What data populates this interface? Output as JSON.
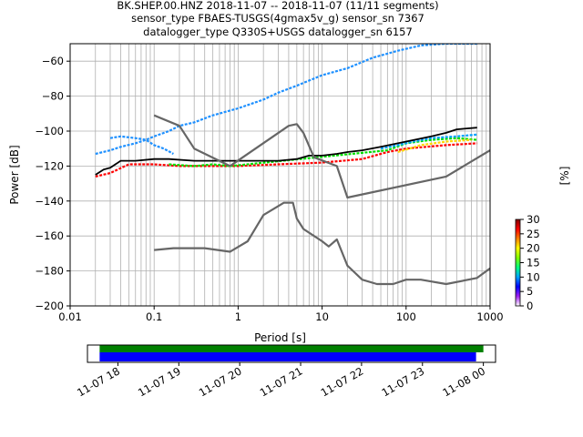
{
  "title_lines": [
    "BK.SHEP.00.HNZ   2018-11-07 -- 2018-11-07  (11/11 segments)",
    "sensor_type FBAES-TUSGS(4gmax5v_g) sensor_sn 7367",
    "datalogger_type Q330S+USGS datalogger_sn 6157"
  ],
  "chart_data": [
    {
      "type": "heatmap",
      "name": "ppsd",
      "xlabel": "Period [s]",
      "ylabel": "Power [dB]",
      "xscale": "log",
      "xlim": [
        0.01,
        1000
      ],
      "ylim": [
        -200,
        -50
      ],
      "xticks": [
        0.01,
        0.1,
        1,
        10,
        100,
        1000
      ],
      "xtick_labels": [
        "0.01",
        "0.1",
        "1",
        "10",
        "100",
        "1000"
      ],
      "yticks": [
        -200,
        -180,
        -160,
        -140,
        -120,
        -100,
        -80,
        -60
      ],
      "ytick_labels": [
        "−200",
        "−180",
        "−160",
        "−140",
        "−120",
        "−100",
        "−80",
        "−60"
      ],
      "grid": true,
      "colorbar": {
        "label": "[%]",
        "range": [
          0,
          30
        ],
        "ticks": [
          0,
          5,
          10,
          15,
          20,
          25,
          30
        ],
        "tick_labels": [
          "0",
          "5",
          "10",
          "15",
          "20",
          "25",
          "30"
        ],
        "colormap": [
          "#ffffff",
          "#a020f0",
          "#0000ff",
          "#00a0ff",
          "#00ff80",
          "#80ff00",
          "#ffff00",
          "#ff8000",
          "#ff0000",
          "#800000"
        ]
      },
      "series": [
        {
          "role": "mean",
          "color": "#000000",
          "x": [
            0.02,
            0.025,
            0.03,
            0.04,
            0.06,
            0.1,
            0.15,
            0.3,
            0.6,
            1,
            2,
            3,
            5,
            7,
            10,
            15,
            20,
            30,
            50,
            100,
            200,
            300,
            400,
            700
          ],
          "y": [
            -125,
            -122,
            -121,
            -117,
            -117,
            -116,
            -116,
            -117,
            -117,
            -117,
            -117,
            -117,
            -116,
            -114,
            -114,
            -113,
            -112,
            -111,
            -109,
            -106,
            -103,
            -101,
            -99,
            -98
          ]
        },
        {
          "role": "noise-model-high",
          "color": "#666666",
          "x": [
            0.1,
            0.2,
            0.3,
            0.8,
            4,
            5,
            6,
            8,
            15,
            20,
            300,
            1000
          ],
          "y": [
            -91,
            -97,
            -110,
            -120,
            -97,
            -96,
            -101,
            -115,
            -120,
            -138,
            -126,
            -111
          ]
        },
        {
          "role": "noise-model-low",
          "color": "#666666",
          "x": [
            0.1,
            0.17,
            0.4,
            0.8,
            1.3,
            2,
            3.5,
            4.5,
            5,
            6,
            10,
            12,
            15,
            20,
            30,
            45,
            70,
            100,
            150,
            300,
            700,
            1000
          ],
          "y": [
            -168,
            -167,
            -167,
            -169,
            -163,
            -148,
            -141,
            -141,
            -150,
            -156,
            -163,
            -166,
            -162,
            -177,
            -185,
            -187.5,
            -187.5,
            -185,
            -185,
            -187.5,
            -184,
            -178.5
          ]
        }
      ],
      "density": [
        {
          "color": "#1e90ff",
          "x": [
            0.03,
            0.04,
            0.06,
            0.08,
            0.1,
            0.15,
            0.2,
            0.3,
            0.5,
            1,
            2,
            3,
            5,
            10,
            20,
            40,
            80,
            150,
            300,
            700
          ],
          "y": [
            -104,
            -103,
            -104,
            -105,
            -103,
            -100,
            -97,
            -95,
            -91,
            -87,
            -82,
            -78,
            -74,
            -68,
            -64,
            -58,
            -54,
            -51,
            -50,
            -50
          ]
        },
        {
          "color": "#1e90ff",
          "x": [
            0.02,
            0.03,
            0.04,
            0.06,
            0.08,
            0.1,
            0.13,
            0.17
          ],
          "y": [
            -113,
            -111,
            -109,
            -107,
            -105,
            -108,
            -110,
            -113
          ]
        },
        {
          "color": "#ff0000",
          "x": [
            0.02,
            0.03,
            0.05,
            0.1,
            0.2,
            0.5,
            1,
            3,
            10,
            30,
            60,
            100,
            300,
            700
          ],
          "y": [
            -126,
            -124,
            -119,
            -119,
            -120,
            -120,
            -120,
            -119,
            -118,
            -116,
            -112,
            -110,
            -108,
            -107
          ]
        },
        {
          "color": "#00e000",
          "x": [
            0.15,
            0.3,
            0.5,
            0.8,
            60,
            100,
            200,
            400,
            700
          ],
          "y": [
            -119,
            -120,
            -119,
            -120,
            -111,
            -107,
            -105,
            -104,
            -105
          ]
        },
        {
          "color": "#00a0ff",
          "x": [
            50,
            80,
            120,
            200,
            400,
            700
          ],
          "y": [
            -110,
            -108,
            -106,
            -104,
            -103,
            -102
          ]
        },
        {
          "color": "#ffd700",
          "x": [
            80,
            150,
            300,
            600
          ],
          "y": [
            -112,
            -108,
            -106,
            -105
          ]
        }
      ]
    },
    {
      "type": "bar",
      "name": "data-coverage",
      "xlabel": "",
      "ylabel": "",
      "xtick_labels": [
        "11-07 18",
        "11-07 19",
        "11-07 20",
        "11-07 21",
        "11-07 22",
        "11-07 23",
        "11-08 00"
      ],
      "series": [
        {
          "role": "coverage-upper",
          "color": "#008000",
          "start_hour": 17.7,
          "end_hour": 24.0
        },
        {
          "role": "coverage-lower",
          "color": "#0000ff",
          "start_hour": 17.7,
          "end_hour": 23.88
        }
      ],
      "xlim_hours": [
        17.5,
        24.2
      ]
    }
  ]
}
